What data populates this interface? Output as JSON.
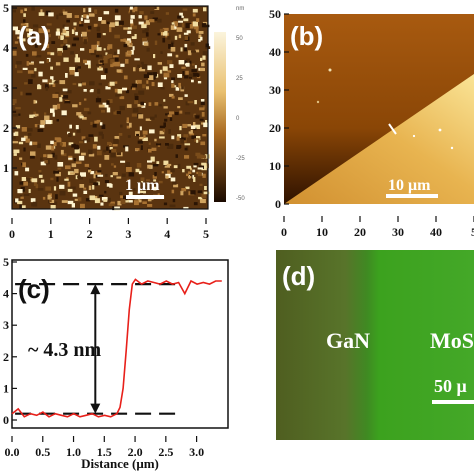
{
  "panels": {
    "a": {
      "label": "(a)",
      "scalebar": "1 μm",
      "x_ticks": [
        "0",
        "1",
        "2",
        "3",
        "4",
        "5"
      ],
      "y_ticks": [
        "1",
        "2",
        "3",
        "4",
        "5"
      ],
      "colorbar_ticks": [
        "nm",
        "50",
        "25",
        "0",
        "-25",
        "-50"
      ]
    },
    "b": {
      "label": "(b)",
      "scalebar": "10 μm",
      "x_ticks": [
        "0",
        "10",
        "20",
        "30",
        "40",
        "5"
      ],
      "y_ticks": [
        "50",
        "40",
        "30",
        "20",
        "10",
        "0"
      ]
    },
    "c": {
      "label": "(c)",
      "annotation": "~ 4.3 nm",
      "xlabel": "Distance (μm)",
      "x_ticks": [
        "0.0",
        "0.5",
        "1.0",
        "1.5",
        "2.0",
        "2.5",
        "3.0"
      ],
      "y_ticks": [
        "5",
        "4",
        "3",
        "2",
        "1",
        "0"
      ]
    },
    "d": {
      "label": "(d)",
      "region_left": "GaN",
      "region_right": "MoS",
      "scalebar": "50 μ"
    }
  },
  "chart_data": {
    "type": "line",
    "title": "",
    "xlabel": "Distance (μm)",
    "ylabel": "",
    "xlim": [
      0,
      3.5
    ],
    "ylim": [
      0,
      5
    ],
    "series": [
      {
        "color": "#e8201a",
        "x": [
          0.0,
          0.1,
          0.2,
          0.3,
          0.4,
          0.5,
          0.6,
          0.7,
          0.8,
          0.9,
          1.0,
          1.1,
          1.2,
          1.3,
          1.4,
          1.5,
          1.6,
          1.7,
          1.75,
          1.8,
          1.85,
          1.9,
          1.95,
          2.0,
          2.1,
          2.2,
          2.3,
          2.4,
          2.5,
          2.6,
          2.7,
          2.8,
          2.9,
          3.0,
          3.1,
          3.2,
          3.3,
          3.4
        ],
        "y": [
          0.2,
          0.35,
          0.1,
          0.2,
          0.15,
          0.25,
          0.1,
          0.2,
          0.15,
          0.1,
          0.2,
          0.1,
          0.15,
          0.2,
          0.1,
          0.15,
          0.1,
          0.2,
          0.4,
          1.0,
          2.2,
          3.5,
          4.3,
          4.45,
          4.3,
          4.4,
          4.35,
          4.3,
          4.4,
          4.3,
          4.35,
          4.0,
          4.4,
          4.3,
          4.35,
          4.3,
          4.4,
          4.4
        ]
      }
    ],
    "reference_lines_y": [
      0.2,
      4.3
    ]
  },
  "colors": {
    "afm_dark": "#3a1e06",
    "afm_light": "#f3dfa2",
    "panel_b_dark": "#3a1700",
    "panel_b_light": "#f0d070",
    "panel_d_left": "#4f6a24",
    "panel_d_right": "#3fa020",
    "trace": "#e8201a"
  }
}
